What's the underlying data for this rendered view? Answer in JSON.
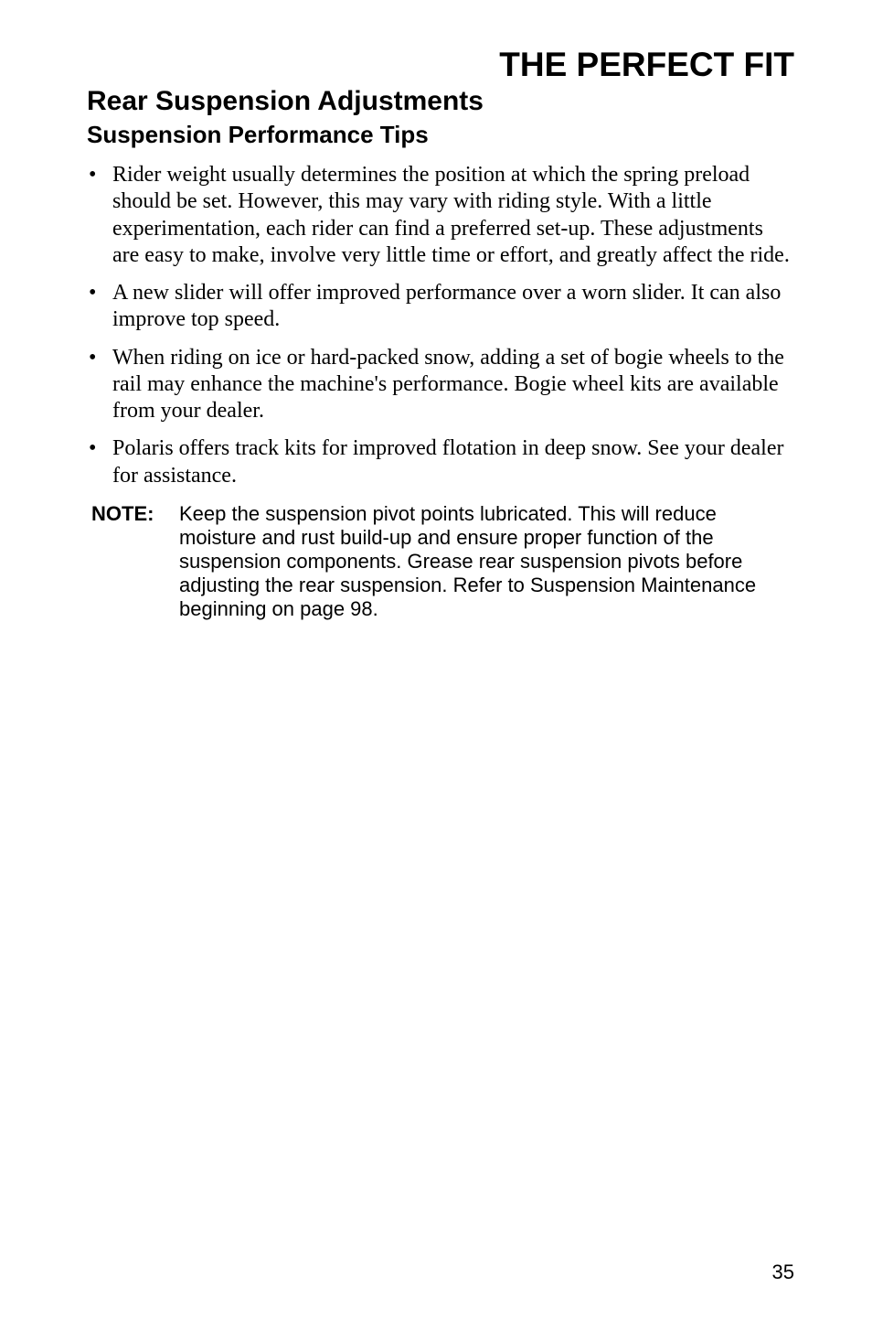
{
  "main_title": {
    "text": "THE PERFECT FIT",
    "font_size": 37,
    "color": "#000000"
  },
  "section_title": {
    "text": "Rear Suspension Adjustments",
    "font_size": 30,
    "color": "#000000"
  },
  "subsection_title": {
    "text": "Suspension Performance Tips",
    "font_size": 26,
    "color": "#000000"
  },
  "bullets": {
    "font_size": 24,
    "color": "#000000",
    "items": [
      "Rider weight usually determines the position at which the spring preload should be set.  However, this may vary with riding style.  With a little experimentation, each rider can find a preferred set-up.  These adjustments are easy to make, involve very little time or effort, and greatly affect the ride.",
      "A new slider will offer improved performance over a worn slider.  It can also improve top speed.",
      "When riding on ice or hard-packed snow, adding a set of bogie wheels to the rail may enhance the machine's performance.  Bogie wheel kits are available from your dealer.",
      "Polaris offers track kits for improved flotation in deep snow.  See your dealer for assistance."
    ]
  },
  "note": {
    "label": "NOTE:",
    "label_font_size": 22,
    "text": "Keep the suspension pivot points lubricated.  This will reduce moisture and rust build-up and ensure proper function of the suspension components.  Grease rear suspension pivots before adjusting the rear suspension.  Refer to Suspension Maintenance beginning on page 98.",
    "text_font_size": 22,
    "color": "#000000"
  },
  "page_number": {
    "text": "35",
    "font_size": 22,
    "color": "#000000"
  }
}
